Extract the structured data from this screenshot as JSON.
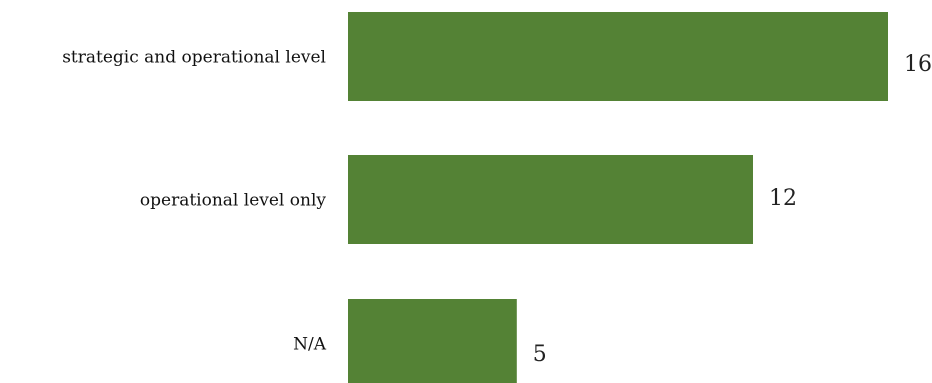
{
  "chart_data": {
    "type": "bar",
    "orientation": "horizontal",
    "categories": [
      "strategic and operational level",
      "operational level only",
      "N/A"
    ],
    "values": [
      16,
      12,
      5
    ],
    "title": "",
    "xlabel": "",
    "ylabel": "",
    "xlim": [
      0,
      16
    ],
    "grid": false,
    "legend": "none",
    "bar_color": "#548235"
  }
}
